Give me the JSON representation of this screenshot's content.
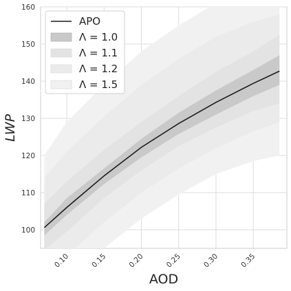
{
  "chart_data": {
    "type": "area",
    "xlabel": "AOD",
    "ylabel": "LWP",
    "xlim": [
      0.065,
      0.395
    ],
    "ylim": [
      95,
      160
    ],
    "grid": true,
    "legend_placement": "top-left",
    "x_ticks": [
      "0.10",
      "0.15",
      "0.20",
      "0.25",
      "0.30",
      "0.35"
    ],
    "y_ticks": [
      "100",
      "110",
      "120",
      "130",
      "140",
      "150",
      "160"
    ],
    "x": [
      0.07,
      0.1,
      0.15,
      0.2,
      0.25,
      0.3,
      0.35,
      0.385
    ],
    "line": {
      "name": "APO",
      "color": "#1a1a1a",
      "values": [
        100.6,
        106.0,
        114.5,
        122.2,
        128.6,
        134.3,
        139.4,
        142.7
      ]
    },
    "series": [
      {
        "name": "Λ = 1.5",
        "color": "#f1f1f1",
        "lower": [
          82.0,
          87.0,
          95.0,
          103.0,
          109.5,
          115.0,
          118.5,
          120.0
        ],
        "upper": [
          120.0,
          129.0,
          139.0,
          148.0,
          155.0,
          161.0,
          166.0,
          169.0
        ]
      },
      {
        "name": "Λ = 1.2",
        "color": "#ebebeb",
        "lower": [
          88.0,
          93.0,
          102.0,
          110.0,
          116.5,
          122.0,
          126.5,
          129.0
        ],
        "upper": [
          114.0,
          121.0,
          130.5,
          139.0,
          146.0,
          152.0,
          156.0,
          158.0
        ]
      },
      {
        "name": "Λ = 1.1",
        "color": "#e3e3e3",
        "lower": [
          94.5,
          99.5,
          108.5,
          116.0,
          122.5,
          127.5,
          132.0,
          134.0
        ],
        "upper": [
          107.0,
          113.0,
          121.5,
          129.0,
          136.0,
          142.5,
          148.0,
          152.5
        ]
      },
      {
        "name": "Λ = 1.0",
        "color": "#c9c9c9",
        "lower": [
          98.5,
          104.0,
          112.3,
          119.5,
          125.8,
          131.0,
          136.0,
          139.0
        ],
        "upper": [
          102.0,
          108.5,
          116.5,
          124.5,
          131.5,
          137.5,
          143.0,
          147.0
        ]
      }
    ],
    "legend": [
      {
        "label": "APO",
        "kind": "line",
        "color": "#1a1a1a"
      },
      {
        "label": "Λ = 1.0",
        "kind": "patch",
        "color": "#c9c9c9"
      },
      {
        "label": "Λ = 1.1",
        "kind": "patch",
        "color": "#e3e3e3"
      },
      {
        "label": "Λ = 1.2",
        "kind": "patch",
        "color": "#ebebeb"
      },
      {
        "label": "Λ = 1.5",
        "kind": "patch",
        "color": "#f1f1f1"
      }
    ]
  }
}
